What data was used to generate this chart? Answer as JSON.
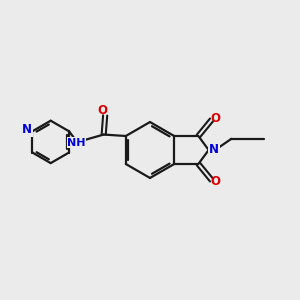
{
  "bg_color": "#ebebeb",
  "bond_color": "#1a1a1a",
  "N_color": "#0000dd",
  "O_color": "#dd0000",
  "line_width": 1.6,
  "font_size": 8.5,
  "figsize": [
    3.0,
    3.0
  ],
  "dpi": 100,
  "xlim": [
    0,
    10
  ],
  "ylim": [
    0,
    10
  ]
}
